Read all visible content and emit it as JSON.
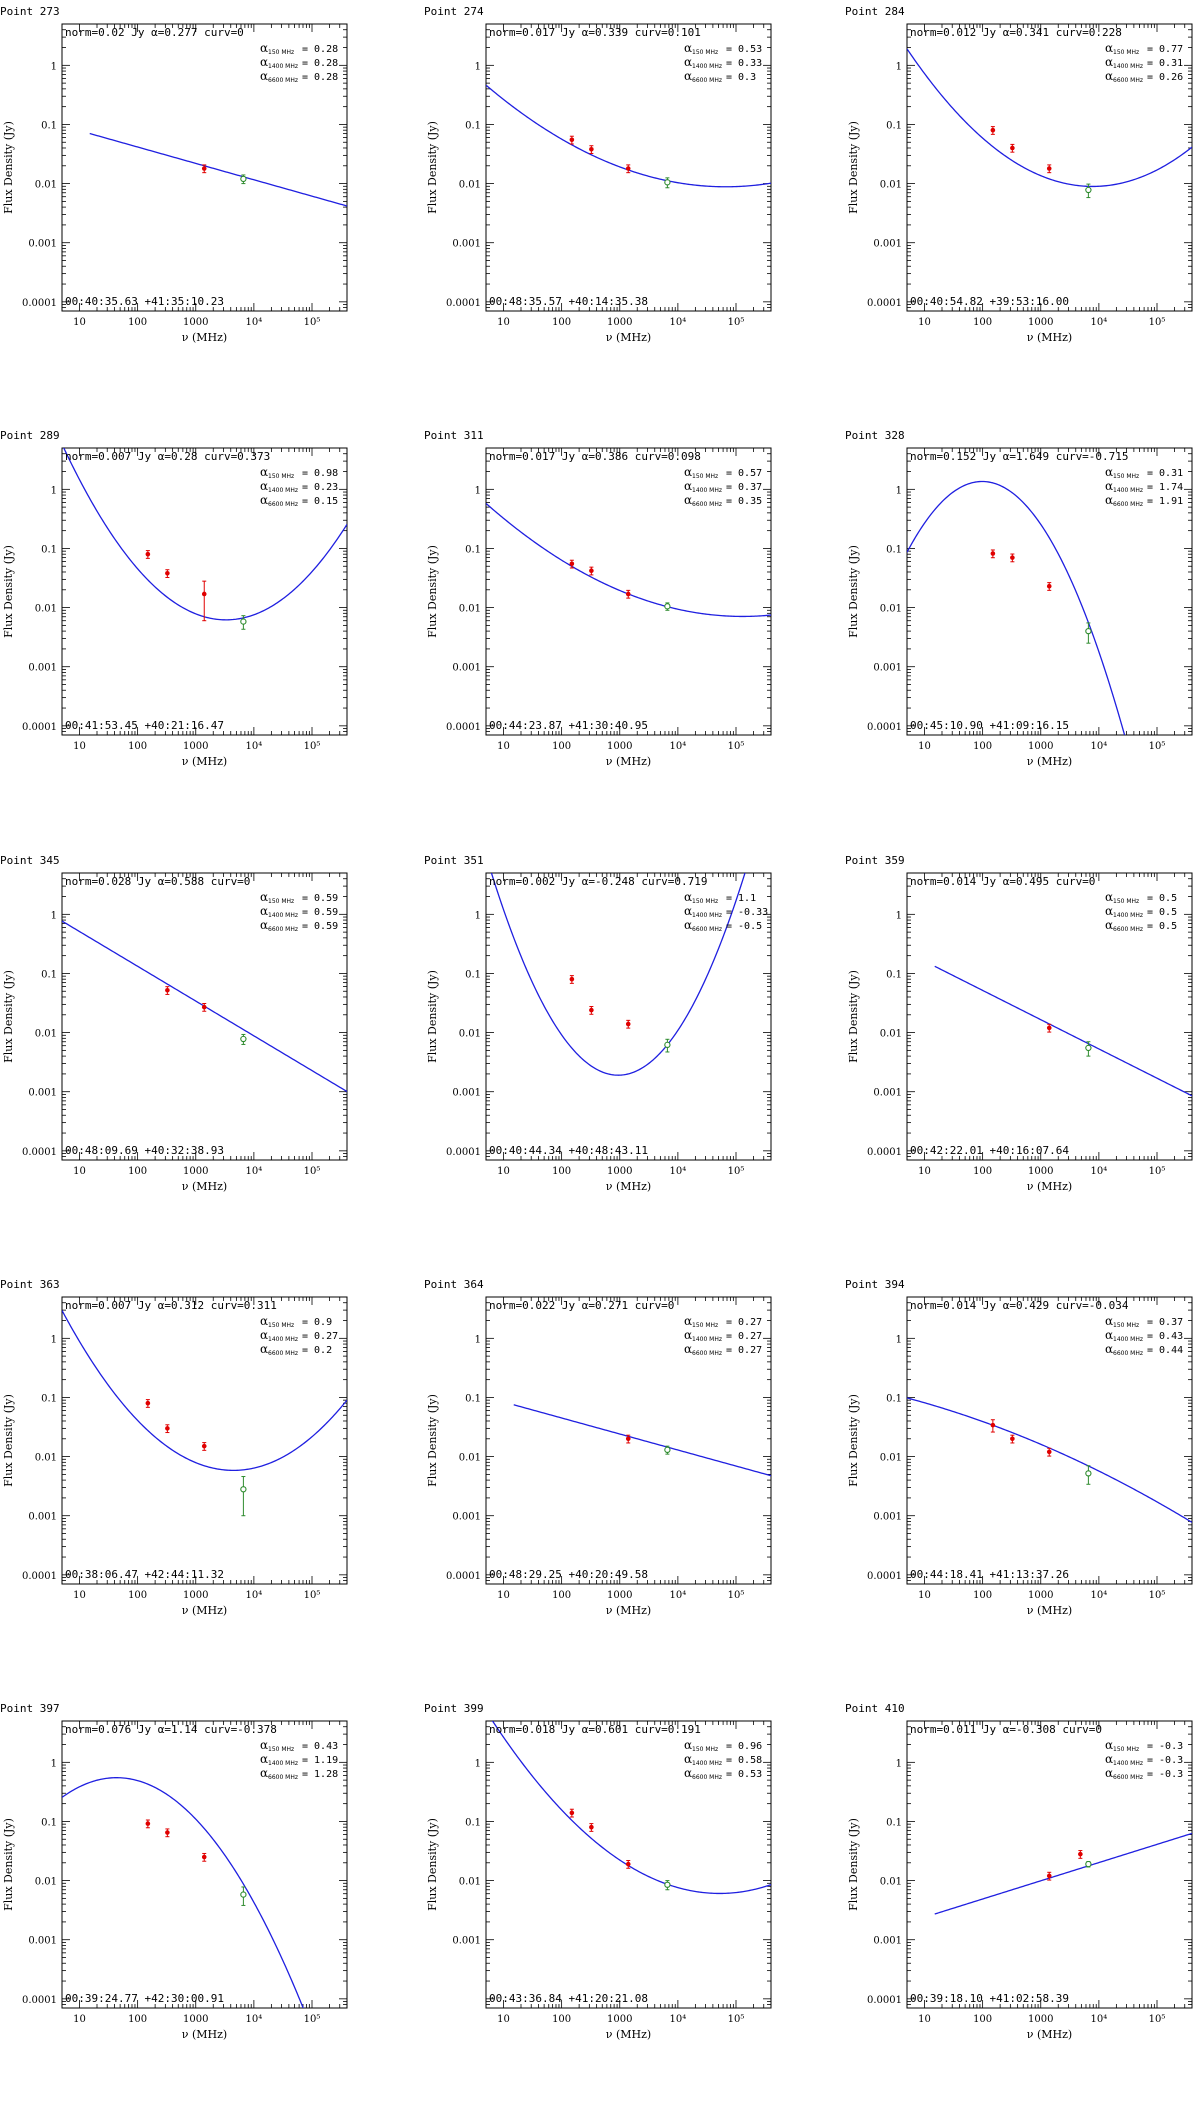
{
  "chart_data": [
    {
      "type": "line",
      "title": "Point 273",
      "norm": "0.02 Jy",
      "alpha": "0.277",
      "curv": "0",
      "coords": "00:40:35.63 +41:35:10.23",
      "a150": "0.28",
      "a1400": "0.28",
      "a6600": "0.28",
      "yticks": [
        1,
        0.1,
        0.01,
        0.001,
        0.0001
      ],
      "ymin": 7e-05,
      "ymax": 5,
      "n": 0.02,
      "a": 0.277,
      "c": 0,
      "curve_from": 15,
      "points_red": [
        [
          1400,
          0.018
        ]
      ],
      "points_green": [
        [
          6600,
          0.012,
          0.002
        ]
      ]
    },
    {
      "type": "line",
      "title": "Point 274",
      "norm": "0.017 Jy",
      "alpha": "0.339",
      "curv": "0.101",
      "coords": "00:48:35.57 +40:14:35.38",
      "a150": "0.53",
      "a1400": "0.33",
      "a6600": "0.3",
      "yticks": [
        1,
        0.1,
        0.01,
        0.001,
        0.0001
      ],
      "ymin": 7e-05,
      "ymax": 5,
      "n": 0.017,
      "a": 0.339,
      "c": 0.101,
      "curve_from": 5,
      "points_red": [
        [
          150,
          0.055
        ],
        [
          325,
          0.038
        ],
        [
          1400,
          0.018
        ]
      ],
      "points_green": [
        [
          6600,
          0.0105,
          0.002
        ]
      ]
    },
    {
      "type": "line",
      "title": "Point 284",
      "norm": "0.012 Jy",
      "alpha": "0.341",
      "curv": "0.228",
      "coords": "00:40:54.82 +39:53:16.00",
      "a150": "0.77",
      "a1400": "0.31",
      "a6600": "0.26",
      "yticks": [
        1,
        0.1,
        0.01,
        0.001,
        0.0001
      ],
      "ymin": 7e-05,
      "ymax": 5,
      "n": 0.012,
      "a": 0.341,
      "c": 0.228,
      "curve_from": 5,
      "points_red": [
        [
          150,
          0.08
        ],
        [
          325,
          0.04
        ],
        [
          1400,
          0.018
        ]
      ],
      "points_green": [
        [
          6600,
          0.0078,
          0.002
        ]
      ]
    },
    {
      "type": "line",
      "title": "Point 289",
      "norm": "0.007 Jy",
      "alpha": "0.28",
      "curv": "0.373",
      "coords": "00:41:53.45 +40:21:16.47",
      "a150": "0.98",
      "a1400": "0.23",
      "a6600": "0.15",
      "yticks": [
        1,
        0.1,
        0.01,
        0.001,
        0.0001
      ],
      "ymin": 7e-05,
      "ymax": 5,
      "n": 0.007,
      "a": 0.28,
      "c": 0.373,
      "curve_from": 5,
      "points_red": [
        [
          150,
          0.08
        ],
        [
          325,
          0.038
        ],
        [
          1400,
          0.017,
          0.011
        ]
      ],
      "points_green": [
        [
          6600,
          0.0058,
          0.0015
        ]
      ]
    },
    {
      "type": "line",
      "title": "Point 311",
      "norm": "0.017 Jy",
      "alpha": "0.386",
      "curv": "0.098",
      "coords": "00:44:23.87 +41:30:40.95",
      "a150": "0.57",
      "a1400": "0.37",
      "a6600": "0.35",
      "yticks": [
        1,
        0.1,
        0.01,
        0.001,
        0.0001
      ],
      "ymin": 7e-05,
      "ymax": 5,
      "n": 0.017,
      "a": 0.386,
      "c": 0.098,
      "curve_from": 5,
      "points_red": [
        [
          150,
          0.055
        ],
        [
          325,
          0.042
        ],
        [
          1400,
          0.017
        ]
      ],
      "points_green": [
        [
          6600,
          0.0105,
          0.0015
        ]
      ]
    },
    {
      "type": "line",
      "title": "Point 328",
      "norm": "0.152 Jy",
      "alpha": "1.649",
      "curv": "-0.715",
      "coords": "00:45:10.90 +41:09:16.15",
      "a150": "0.31",
      "a1400": "1.74",
      "a6600": "1.91",
      "yticks": [
        1,
        0.1,
        0.01,
        0.001,
        0.0001
      ],
      "ymin": 7e-05,
      "ymax": 5,
      "n": 0.152,
      "a": 1.649,
      "c": -0.715,
      "curve_from": 5,
      "points_red": [
        [
          150,
          0.082
        ],
        [
          325,
          0.07
        ],
        [
          1400,
          0.023
        ]
      ],
      "points_green": [
        [
          6600,
          0.004,
          0.0015
        ]
      ]
    },
    {
      "type": "line",
      "title": "Point 345",
      "norm": "0.028 Jy",
      "alpha": "0.588",
      "curv": "0",
      "coords": "00:48:09.69 +40:32:38.93",
      "a150": "0.59",
      "a1400": "0.59",
      "a6600": "0.59",
      "yticks": [
        1,
        0.1,
        0.01,
        0.001,
        0.0001
      ],
      "ymin": 7e-05,
      "ymax": 5,
      "n": 0.028,
      "a": 0.588,
      "c": 0,
      "curve_from": 5,
      "points_red": [
        [
          325,
          0.052
        ],
        [
          1400,
          0.027
        ]
      ],
      "points_green": [
        [
          6600,
          0.0078,
          0.0015
        ]
      ]
    },
    {
      "type": "line",
      "title": "Point 351",
      "norm": "0.002 Jy",
      "alpha": "-0.248",
      "curv": "0.719",
      "coords": "00:40:44.34 +40:48:43.11",
      "a150": "1.1",
      "a1400": "-0.33",
      "a6600": "-0.5",
      "yticks": [
        1,
        0.1,
        0.01,
        0.001,
        0.0001
      ],
      "ymin": 7e-05,
      "ymax": 5,
      "n": 0.002,
      "a": -0.248,
      "c": 0.719,
      "curve_from": 5,
      "points_red": [
        [
          150,
          0.08
        ],
        [
          325,
          0.024
        ],
        [
          1400,
          0.014
        ]
      ],
      "points_green": [
        [
          6600,
          0.0062,
          0.0015
        ]
      ]
    },
    {
      "type": "line",
      "title": "Point 359",
      "norm": "0.014 Jy",
      "alpha": "0.495",
      "curv": "0",
      "coords": "00:42:22.01 +40:16:07.64",
      "a150": "0.5",
      "a1400": "0.5",
      "a6600": "0.5",
      "yticks": [
        1,
        0.1,
        0.01,
        0.001,
        0.0001
      ],
      "ymin": 7e-05,
      "ymax": 5,
      "n": 0.014,
      "a": 0.495,
      "c": 0,
      "curve_from": 15,
      "points_red": [
        [
          1400,
          0.012
        ]
      ],
      "points_green": [
        [
          6600,
          0.0055,
          0.0015
        ]
      ]
    },
    {
      "type": "line",
      "title": "Point 363",
      "norm": "0.007 Jy",
      "alpha": "0.312",
      "curv": "0.311",
      "coords": "00:38:06.47 +42:44:11.32",
      "a150": "0.9",
      "a1400": "0.27",
      "a6600": "0.2",
      "yticks": [
        1,
        0.1,
        0.01,
        0.001,
        0.0001
      ],
      "ymin": 7e-05,
      "ymax": 5,
      "n": 0.007,
      "a": 0.312,
      "c": 0.311,
      "curve_from": 5,
      "points_red": [
        [
          150,
          0.08
        ],
        [
          325,
          0.03
        ],
        [
          1400,
          0.015
        ]
      ],
      "points_green": [
        [
          6600,
          0.0028,
          0.0018
        ]
      ]
    },
    {
      "type": "line",
      "title": "Point 364",
      "norm": "0.022 Jy",
      "alpha": "0.271",
      "curv": "0",
      "coords": "00:48:29.25 +40:20:49.58",
      "a150": "0.27",
      "a1400": "0.27",
      "a6600": "0.27",
      "yticks": [
        1,
        0.1,
        0.01,
        0.001,
        0.0001
      ],
      "ymin": 7e-05,
      "ymax": 5,
      "n": 0.022,
      "a": 0.271,
      "c": 0,
      "curve_from": 15,
      "points_red": [
        [
          1400,
          0.02
        ]
      ],
      "points_green": [
        [
          6600,
          0.013,
          0.002
        ]
      ]
    },
    {
      "type": "line",
      "title": "Point 394",
      "norm": "0.014 Jy",
      "alpha": "0.429",
      "curv": "-0.034",
      "coords": "00:44:18.41 +41:13:37.26",
      "a150": "0.37",
      "a1400": "0.43",
      "a6600": "0.44",
      "yticks": [
        1,
        0.1,
        0.01,
        0.001,
        0.0001
      ],
      "ymin": 7e-05,
      "ymax": 5,
      "n": 0.014,
      "a": 0.429,
      "c": -0.034,
      "curve_from": 5,
      "points_red": [
        [
          150,
          0.034,
          0.008
        ],
        [
          325,
          0.02
        ],
        [
          1400,
          0.012
        ]
      ],
      "points_green": [
        [
          6600,
          0.0052,
          0.0018
        ]
      ]
    },
    {
      "type": "line",
      "title": "Point 397",
      "norm": "0.076 Jy",
      "alpha": "1.14",
      "curv": "-0.378",
      "coords": "00:39:24.77 +42:30:00.91",
      "a150": "0.43",
      "a1400": "1.19",
      "a6600": "1.28",
      "yticks": [
        1,
        0.1,
        0.01,
        0.001,
        0.0001
      ],
      "ymin": 7e-05,
      "ymax": 5,
      "n": 0.076,
      "a": 1.14,
      "c": -0.378,
      "curve_from": 5,
      "points_red": [
        [
          150,
          0.092
        ],
        [
          325,
          0.065
        ],
        [
          1400,
          0.025
        ]
      ],
      "points_green": [
        [
          6600,
          0.0058,
          0.002
        ]
      ]
    },
    {
      "type": "line",
      "title": "Point 399",
      "norm": "0.018 Jy",
      "alpha": "0.601",
      "curv": "0.191",
      "coords": "00:43:36.84 +41:20:21.08",
      "a150": "0.96",
      "a1400": "0.58",
      "a6600": "0.53",
      "yticks": [
        1,
        0.1,
        0.01,
        0.001
      ],
      "ymin": 7e-05,
      "ymax": 5,
      "n": 0.018,
      "a": 0.601,
      "c": 0.191,
      "curve_from": 5,
      "points_red": [
        [
          150,
          0.14
        ],
        [
          325,
          0.08
        ],
        [
          1400,
          0.019
        ]
      ],
      "points_green": [
        [
          6600,
          0.0085,
          0.0015
        ]
      ]
    },
    {
      "type": "line",
      "title": "Point 410",
      "norm": "0.011 Jy",
      "alpha": "-0.308",
      "curv": "0",
      "coords": "00:39:18.10 +41:02:58.39",
      "a150": "-0.3",
      "a1400": "-0.3",
      "a6600": "-0.3",
      "yticks": [
        1,
        0.1,
        0.01,
        0.001,
        0.0001
      ],
      "ymin": 7e-05,
      "ymax": 5,
      "n": 0.011,
      "a": -0.308,
      "c": 0,
      "curve_from": 15,
      "points_red": [
        [
          1400,
          0.012
        ],
        [
          4800,
          0.028
        ]
      ],
      "points_green": [
        [
          6600,
          0.019,
          0.002
        ]
      ]
    }
  ],
  "axes": {
    "xlabel": "ν (MHz)",
    "ylabel": "Flux Density (Jy)",
    "xticks": [
      "10",
      "100",
      "1000",
      "10⁴",
      "10⁵"
    ],
    "x_tick_values": [
      10,
      100,
      1000,
      10000,
      100000
    ],
    "xlim": [
      5,
      400000
    ]
  },
  "colors": {
    "curve": "#1f1fe0",
    "red": "#e00000",
    "green": "#2e8b2e",
    "frame": "#000000"
  }
}
